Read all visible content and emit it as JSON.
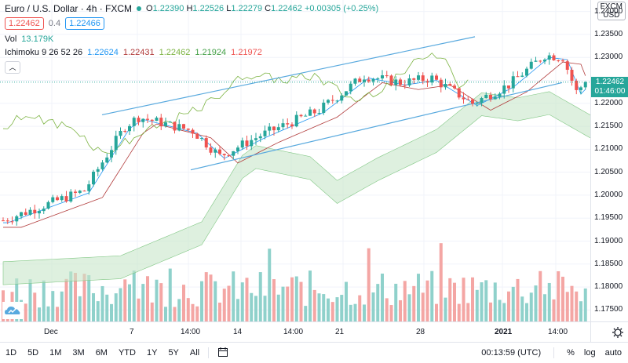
{
  "colors": {
    "up": "#26a69a",
    "down": "#ef5350",
    "up_vol": "#8fd1cb",
    "down_vol": "#f4a6a4",
    "trendline": "#58a9de",
    "tenkan": "#2196f3",
    "kijun": "#b13b3b",
    "chikou": "#7cb342",
    "cloud": "#c8e6c9",
    "price_tag": "#26a69a"
  },
  "legend": {
    "title": "Euro / U.S. Dollar · 4h · FXCM",
    "o_label": "O",
    "o": "1.22390",
    "h_label": "H",
    "h": "1.22526",
    "l_label": "L",
    "l": "1.22279",
    "c_label": "C",
    "c": "1.22462",
    "change": "+0.00305 (+0.25%)",
    "bid": "1.22462",
    "spread": "0.4",
    "ask": "1.22466",
    "vol_label": "Vol",
    "vol_value": "13.179K",
    "ichimoku_label": "Ichimoku 9 26 52 26",
    "ichimoku_values": [
      "1.22624",
      "1.22431",
      "1.22462",
      "1.21924",
      "1.21972"
    ]
  },
  "price_axis": {
    "currency": "USD",
    "currency_prefix": "FXCM",
    "ticks": [
      "1.24000",
      "1.23500",
      "1.23000",
      "1.22500",
      "1.22000",
      "1.21500",
      "1.21000",
      "1.20500",
      "1.20000",
      "1.19500",
      "1.19000",
      "1.18500",
      "1.18000",
      "1.17500"
    ],
    "last_price": "1.22462",
    "countdown": "01:46:00"
  },
  "time_axis": {
    "labels": [
      "Dec",
      "7",
      "14:00",
      "14",
      "14:00",
      "21",
      "28",
      "2021",
      "14:00"
    ]
  },
  "toolbar": {
    "ranges": [
      "1D",
      "5D",
      "1M",
      "3M",
      "6M",
      "YTD",
      "1Y",
      "5Y",
      "All"
    ],
    "clock": "00:13:59 (UTC)",
    "percent": "%",
    "log": "log",
    "auto": "auto"
  },
  "chart_data": {
    "type": "candlestick",
    "symbol": "EURUSD",
    "timeframe": "4h",
    "ylim": [
      1.1725,
      1.2425
    ],
    "x_labels": [
      "Dec",
      "7",
      "14:00",
      "14",
      "14:00",
      "21",
      "28",
      "2021",
      "14:00"
    ],
    "key_prices": {
      "start_close": 1.1945,
      "high": 1.2309,
      "last_close": 1.22462
    },
    "channel": {
      "upper": [
        [
          1.2175,
          1.2345
        ]
      ],
      "lower": [
        [
          1.2055,
          1.2245
        ]
      ]
    },
    "series": [
      {
        "name": "Ichimoku",
        "values": [
          "1.22624",
          "1.22431",
          "1.22462",
          "1.21924",
          "1.21972"
        ]
      },
      {
        "name": "Vol",
        "last": "13.179K"
      }
    ]
  }
}
